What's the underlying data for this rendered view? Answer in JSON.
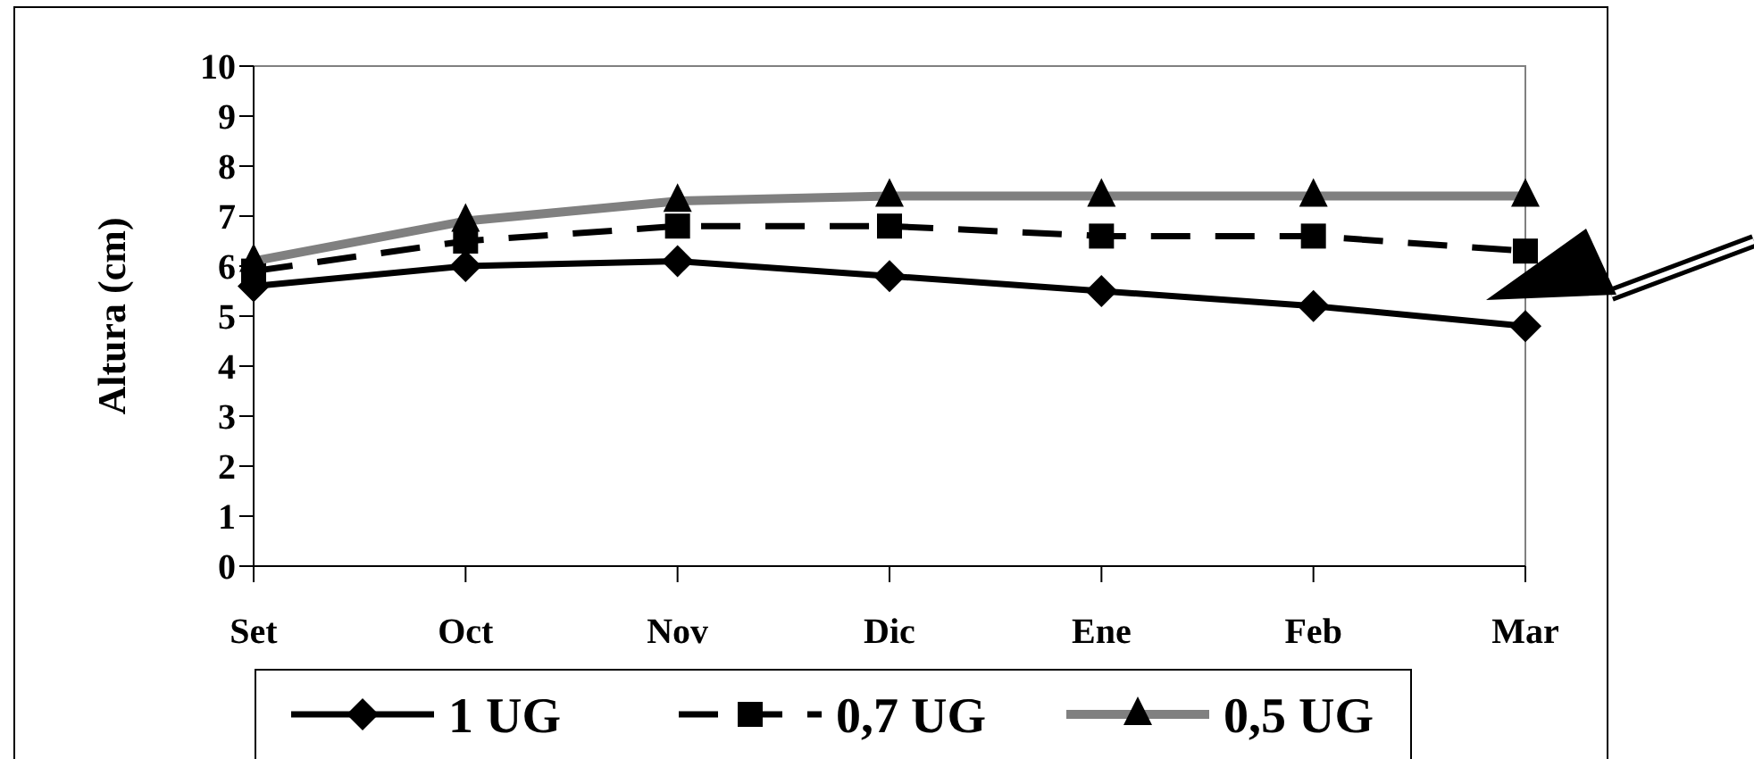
{
  "chart_data": {
    "type": "line",
    "ylabel": "Altura (cm)",
    "categories": [
      "Set",
      "Oct",
      "Nov",
      "Dic",
      "Ene",
      "Feb",
      "Mar"
    ],
    "series": [
      {
        "name": "1 UG",
        "color": "#000000",
        "marker": "diamond",
        "line_style": "solid",
        "values": [
          5.6,
          6.0,
          6.1,
          5.8,
          5.5,
          5.2,
          4.8
        ]
      },
      {
        "name": "0,7 UG",
        "color": "#000000",
        "marker": "square",
        "line_style": "dashed",
        "values": [
          5.9,
          6.5,
          6.8,
          6.8,
          6.6,
          6.6,
          6.3
        ]
      },
      {
        "name": "0,5 UG",
        "color": "#808080",
        "marker": "triangle",
        "line_style": "solid",
        "values": [
          6.1,
          6.9,
          7.3,
          7.4,
          7.4,
          7.4,
          7.4
        ]
      }
    ],
    "ylim": [
      0,
      10
    ],
    "yticks": [
      0,
      1,
      2,
      3,
      4,
      5,
      6,
      7,
      8,
      9,
      10
    ],
    "grid": false,
    "legend": "bottom"
  }
}
